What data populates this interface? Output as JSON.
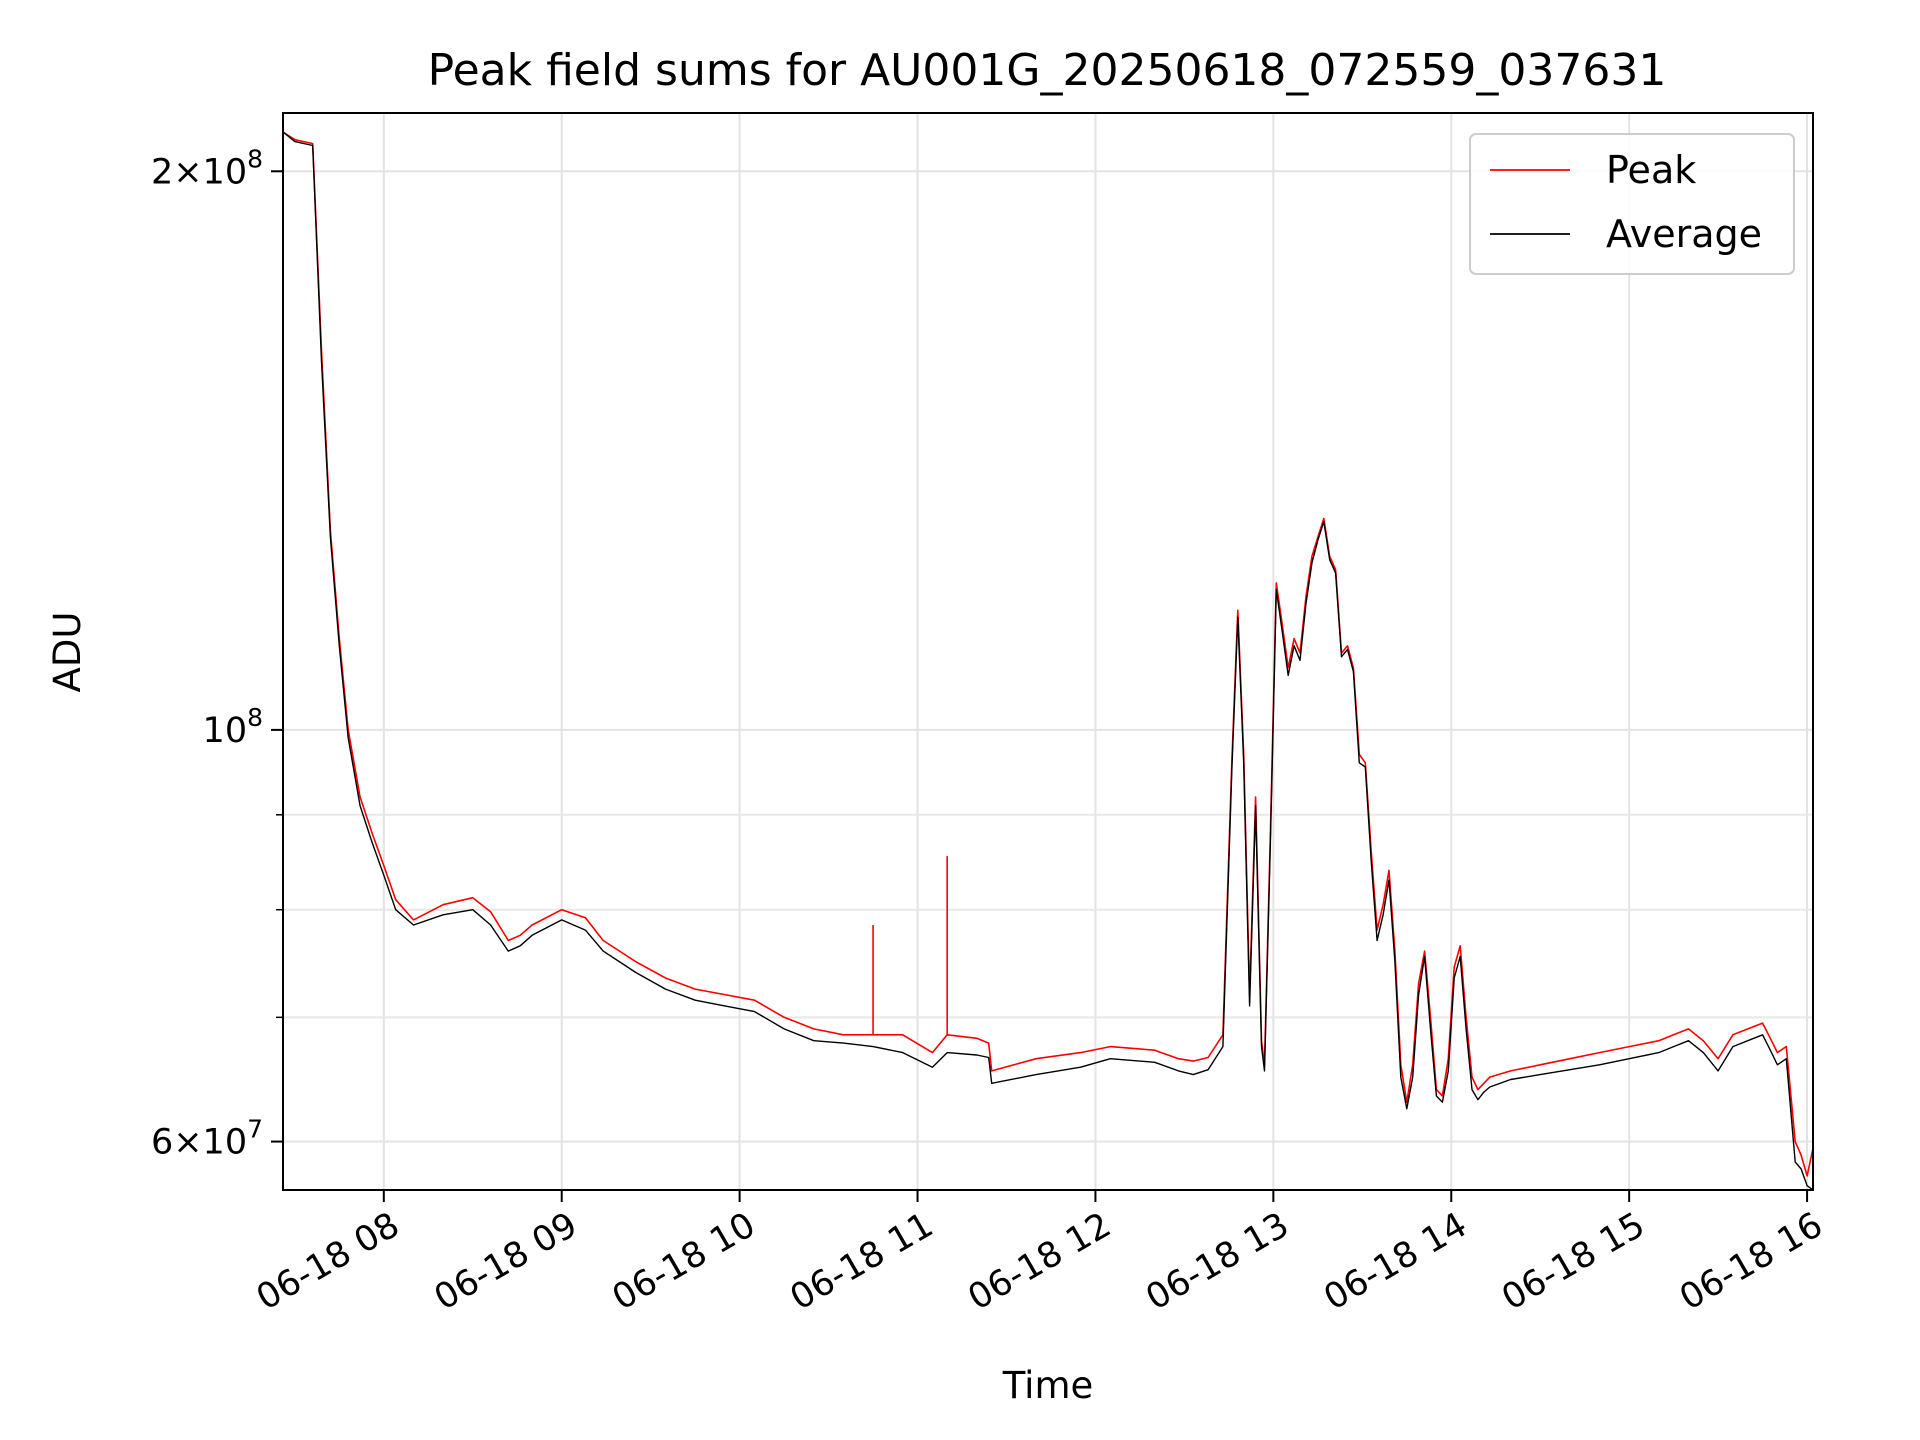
{
  "chart_data": {
    "type": "line",
    "title": "Peak field sums for AU001G_20250618_072559_037631",
    "xlabel": "Time",
    "ylabel": "ADU",
    "yscale": "log",
    "ylim": [
      56500000,
      215000000
    ],
    "xlim": [
      "06-18 07:26",
      "06-18 16:02"
    ],
    "grid": true,
    "legend_position": "top-right",
    "x_ticks": [
      "06-18 08",
      "06-18 09",
      "06-18 10",
      "06-18 11",
      "06-18 12",
      "06-18 13",
      "06-18 14",
      "06-18 15",
      "06-18 16"
    ],
    "y_ticks": [
      {
        "value": 200000000,
        "mantissa": "2",
        "exponent": "8"
      },
      {
        "value": 100000000,
        "mantissa": "",
        "exponent": "8"
      },
      {
        "value": 60000000,
        "mantissa": "6",
        "exponent": "7"
      }
    ],
    "y_minor_ticks": [
      70000000,
      80000000,
      90000000
    ],
    "series": [
      {
        "name": "Peak",
        "color": "#ff0000",
        "x": [
          "06-18 07:26",
          "06-18 07:30",
          "06-18 07:36",
          "06-18 07:39",
          "06-18 07:42",
          "06-18 07:45",
          "06-18 07:48",
          "06-18 07:52",
          "06-18 07:56",
          "06-18 08:00",
          "06-18 08:04",
          "06-18 08:10",
          "06-18 08:20",
          "06-18 08:30",
          "06-18 08:36",
          "06-18 08:42",
          "06-18 08:46",
          "06-18 08:50",
          "06-18 09:00",
          "06-18 09:08",
          "06-18 09:14",
          "06-18 09:25",
          "06-18 09:35",
          "06-18 09:45",
          "06-18 09:55",
          "06-18 10:05",
          "06-18 10:15",
          "06-18 10:25",
          "06-18 10:35",
          "06-18 10:45",
          "06-18 10:55",
          "06-18 11:05",
          "06-18 11:10",
          "06-18 11:20",
          "06-18 11:24",
          "06-18 11:25",
          "06-18 11:40",
          "06-18 11:55",
          "06-18 12:05",
          "06-18 12:20",
          "06-18 12:28",
          "06-18 12:33",
          "06-18 12:38",
          "06-18 12:43",
          "06-18 12:46",
          "06-18 12:48",
          "06-18 12:50",
          "06-18 12:52",
          "06-18 12:54",
          "06-18 12:56",
          "06-18 12:57",
          "06-18 12:59",
          "06-18 13:01",
          "06-18 13:03",
          "06-18 13:05",
          "06-18 13:07",
          "06-18 13:09",
          "06-18 13:11",
          "06-18 13:13",
          "06-18 13:15",
          "06-18 13:17",
          "06-18 13:19",
          "06-18 13:21",
          "06-18 13:23",
          "06-18 13:25",
          "06-18 13:27",
          "06-18 13:29",
          "06-18 13:31",
          "06-18 13:33",
          "06-18 13:35",
          "06-18 13:37",
          "06-18 13:39",
          "06-18 13:41",
          "06-18 13:43",
          "06-18 13:45",
          "06-18 13:47",
          "06-18 13:49",
          "06-18 13:51",
          "06-18 13:53",
          "06-18 13:55",
          "06-18 13:57",
          "06-18 13:59",
          "06-18 14:01",
          "06-18 14:03",
          "06-18 14:05",
          "06-18 14:07",
          "06-18 14:09",
          "06-18 14:11",
          "06-18 14:13",
          "06-18 14:20",
          "06-18 14:30",
          "06-18 14:40",
          "06-18 14:50",
          "06-18 15:00",
          "06-18 15:10",
          "06-18 15:15",
          "06-18 15:20",
          "06-18 15:25",
          "06-18 15:30",
          "06-18 15:35",
          "06-18 15:40",
          "06-18 15:45",
          "06-18 15:48",
          "06-18 15:50",
          "06-18 15:53",
          "06-18 15:56",
          "06-18 15:58",
          "06-18 16:00",
          "06-18 16:02"
        ],
        "y": [
          210000000,
          208000000,
          207000000,
          160000000,
          128000000,
          112000000,
          100000000,
          92000000,
          88000000,
          84500000,
          81000000,
          79000000,
          80500000,
          81200000,
          79800000,
          77000000,
          77500000,
          78500000,
          80000000,
          79200000,
          77000000,
          75000000,
          73500000,
          72500000,
          72000000,
          71500000,
          70000000,
          69000000,
          68500000,
          68500000,
          68500000,
          67000000,
          68500000,
          68200000,
          67800000,
          65500000,
          66500000,
          67000000,
          67500000,
          67200000,
          66500000,
          66300000,
          66600000,
          68500000,
          96000000,
          116000000,
          97000000,
          72000000,
          92000000,
          68000000,
          66000000,
          88000000,
          120000000,
          114000000,
          108000000,
          112000000,
          110000000,
          118000000,
          124000000,
          127000000,
          130000000,
          124000000,
          122000000,
          110000000,
          111000000,
          108000000,
          97000000,
          96000000,
          86000000,
          78000000,
          80500000,
          84000000,
          76000000,
          66000000,
          63000000,
          66000000,
          73000000,
          76000000,
          70000000,
          64000000,
          63500000,
          66500000,
          74500000,
          76500000,
          70000000,
          65000000,
          64000000,
          64500000,
          65000000,
          65500000,
          66000000,
          66500000,
          67000000,
          67500000,
          68000000,
          68500000,
          69000000,
          68000000,
          66500000,
          68500000,
          69000000,
          69500000,
          68000000,
          67000000,
          67500000,
          60000000,
          59000000,
          57500000,
          59500000
        ]
      },
      {
        "name": "Average",
        "color": "#000000",
        "x": [
          "06-18 07:26",
          "06-18 07:30",
          "06-18 07:36",
          "06-18 07:39",
          "06-18 07:42",
          "06-18 07:45",
          "06-18 07:48",
          "06-18 07:52",
          "06-18 07:56",
          "06-18 08:00",
          "06-18 08:04",
          "06-18 08:10",
          "06-18 08:20",
          "06-18 08:30",
          "06-18 08:36",
          "06-18 08:42",
          "06-18 08:46",
          "06-18 08:50",
          "06-18 09:00",
          "06-18 09:08",
          "06-18 09:14",
          "06-18 09:25",
          "06-18 09:35",
          "06-18 09:45",
          "06-18 09:55",
          "06-18 10:05",
          "06-18 10:15",
          "06-18 10:25",
          "06-18 10:35",
          "06-18 10:45",
          "06-18 10:55",
          "06-18 11:05",
          "06-18 11:10",
          "06-18 11:20",
          "06-18 11:24",
          "06-18 11:25",
          "06-18 11:40",
          "06-18 11:55",
          "06-18 12:05",
          "06-18 12:20",
          "06-18 12:28",
          "06-18 12:33",
          "06-18 12:38",
          "06-18 12:43",
          "06-18 12:46",
          "06-18 12:48",
          "06-18 12:50",
          "06-18 12:52",
          "06-18 12:54",
          "06-18 12:56",
          "06-18 12:57",
          "06-18 12:59",
          "06-18 13:01",
          "06-18 13:03",
          "06-18 13:05",
          "06-18 13:07",
          "06-18 13:09",
          "06-18 13:11",
          "06-18 13:13",
          "06-18 13:15",
          "06-18 13:17",
          "06-18 13:19",
          "06-18 13:21",
          "06-18 13:23",
          "06-18 13:25",
          "06-18 13:27",
          "06-18 13:29",
          "06-18 13:31",
          "06-18 13:33",
          "06-18 13:35",
          "06-18 13:37",
          "06-18 13:39",
          "06-18 13:41",
          "06-18 13:43",
          "06-18 13:45",
          "06-18 13:47",
          "06-18 13:49",
          "06-18 13:51",
          "06-18 13:53",
          "06-18 13:55",
          "06-18 13:57",
          "06-18 13:59",
          "06-18 14:01",
          "06-18 14:03",
          "06-18 14:05",
          "06-18 14:07",
          "06-18 14:09",
          "06-18 14:11",
          "06-18 14:13",
          "06-18 14:20",
          "06-18 14:30",
          "06-18 14:40",
          "06-18 14:50",
          "06-18 15:00",
          "06-18 15:10",
          "06-18 15:15",
          "06-18 15:20",
          "06-18 15:25",
          "06-18 15:30",
          "06-18 15:35",
          "06-18 15:40",
          "06-18 15:45",
          "06-18 15:48",
          "06-18 15:50",
          "06-18 15:53",
          "06-18 15:56",
          "06-18 15:58",
          "06-18 16:00",
          "06-18 16:02"
        ],
        "y": [
          210000000,
          207500000,
          206500000,
          158000000,
          127000000,
          111000000,
          99000000,
          91000000,
          87000000,
          83500000,
          80000000,
          78500000,
          79500000,
          80000000,
          78500000,
          76000000,
          76500000,
          77500000,
          79000000,
          78000000,
          76000000,
          74000000,
          72500000,
          71500000,
          71000000,
          70500000,
          69000000,
          68000000,
          67800000,
          67500000,
          67000000,
          65800000,
          67000000,
          66800000,
          66600000,
          64500000,
          65200000,
          65800000,
          66500000,
          66200000,
          65500000,
          65200000,
          65600000,
          67500000,
          95000000,
          115000000,
          96000000,
          71000000,
          91000000,
          67500000,
          65500000,
          87000000,
          119000000,
          113000000,
          107000000,
          111000000,
          109000000,
          117000000,
          123000000,
          126500000,
          129500000,
          123500000,
          121500000,
          109500000,
          110500000,
          107500000,
          96000000,
          95500000,
          85000000,
          77000000,
          79500000,
          83000000,
          75000000,
          65000000,
          62500000,
          65000000,
          72000000,
          75500000,
          69000000,
          63500000,
          63000000,
          65500000,
          73500000,
          75500000,
          69000000,
          64000000,
          63200000,
          63800000,
          64200000,
          64800000,
          65200000,
          65600000,
          66000000,
          66500000,
          67000000,
          67500000,
          68000000,
          67000000,
          65500000,
          67500000,
          68000000,
          68500000,
          67000000,
          66000000,
          66500000,
          58500000,
          58000000,
          56800000,
          56500000
        ]
      }
    ],
    "spikes": [
      {
        "series": "Peak",
        "x": "06-18 10:45",
        "y": 78500000
      },
      {
        "series": "Peak",
        "x": "06-18 11:10",
        "y": 85500000
      }
    ]
  }
}
